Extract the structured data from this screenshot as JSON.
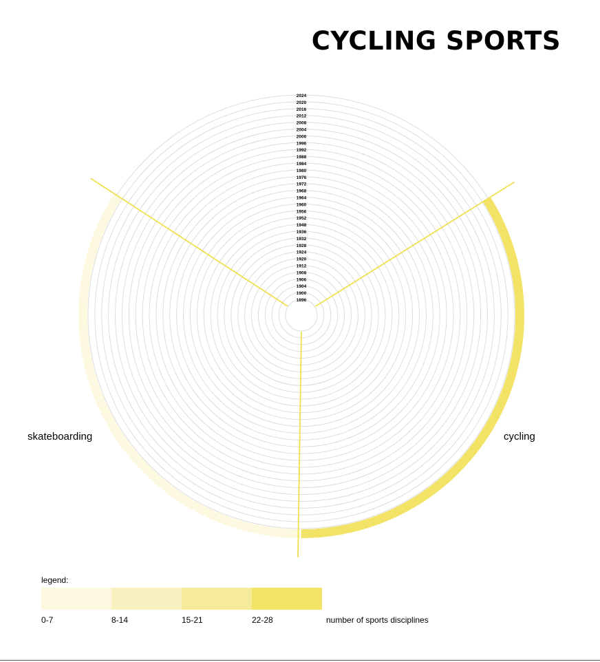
{
  "page": {
    "title": "CYCLING SPORTS"
  },
  "chart_data": {
    "type": "radial",
    "title": "CYCLING SPORTS",
    "rings": [
      "1896",
      "1900",
      "1904",
      "1906",
      "1908",
      "1912",
      "1920",
      "1924",
      "1928",
      "1932",
      "1936",
      "1948",
      "1952",
      "1956",
      "1960",
      "1964",
      "1968",
      "1972",
      "1976",
      "1980",
      "1984",
      "1988",
      "1992",
      "1996",
      "2000",
      "2004",
      "2008",
      "2012",
      "2016",
      "2020",
      "2024"
    ],
    "categories": [
      "cycling",
      "skateboarding"
    ],
    "series": [
      {
        "name": "cycling",
        "year": "2024",
        "value_range": "22-28",
        "color": "#f2e366"
      },
      {
        "name": "skateboarding",
        "year": "2024",
        "value_range": "0-7",
        "color": "#fcf9e0"
      }
    ],
    "grid": true
  },
  "legend": {
    "title": "legend:",
    "items": [
      {
        "label": "0-7",
        "color": "#fcf9e0"
      },
      {
        "label": "8-14",
        "color": "#f9f1c0"
      },
      {
        "label": "15-21",
        "color": "#f5eb98"
      },
      {
        "label": "22-28",
        "color": "#f2e366"
      }
    ],
    "note": "number of sports disciplines"
  },
  "colors": {
    "divider": "#f0e050",
    "ring": "#dcdcdc"
  }
}
